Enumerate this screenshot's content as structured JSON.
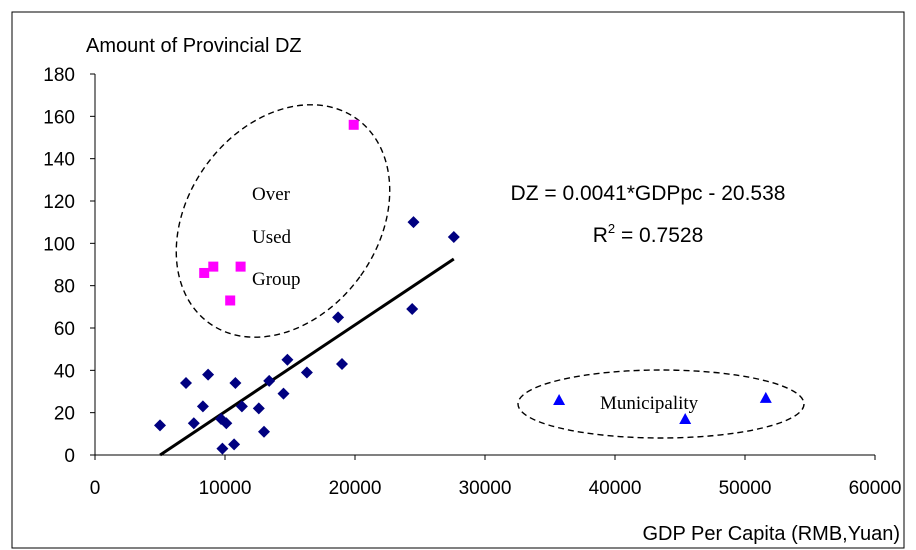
{
  "chart_data": {
    "type": "scatter",
    "title": "",
    "ylabel": "Amount of Provincial DZ",
    "xlabel": "GDP Per Capita (RMB,Yuan)",
    "xlim": [
      0,
      60000
    ],
    "ylim": [
      0,
      180
    ],
    "xticks": [
      0,
      10000,
      20000,
      30000,
      40000,
      50000,
      60000
    ],
    "yticks": [
      0,
      20,
      40,
      60,
      80,
      100,
      120,
      140,
      160,
      180
    ],
    "grid": false,
    "legend": "none",
    "series": [
      {
        "marker": "diamond",
        "color": "#000080",
        "points": [
          [
            5000,
            14
          ],
          [
            7000,
            34
          ],
          [
            7600,
            15
          ],
          [
            8300,
            23
          ],
          [
            8700,
            38
          ],
          [
            9700,
            17
          ],
          [
            9800,
            3
          ],
          [
            10100,
            15
          ],
          [
            10700,
            5
          ],
          [
            10800,
            34
          ],
          [
            11300,
            23
          ],
          [
            12600,
            22
          ],
          [
            13000,
            11
          ],
          [
            13400,
            35
          ],
          [
            14500,
            29
          ],
          [
            14800,
            45
          ],
          [
            16300,
            39
          ],
          [
            18700,
            65
          ],
          [
            19000,
            43
          ],
          [
            24400,
            69
          ],
          [
            24500,
            110
          ],
          [
            27600,
            103
          ]
        ]
      },
      {
        "marker": "square",
        "color": "#ff00ff",
        "points": [
          [
            8400,
            86
          ],
          [
            9100,
            89
          ],
          [
            10400,
            73
          ],
          [
            11200,
            89
          ],
          [
            19900,
            156
          ]
        ]
      },
      {
        "marker": "triangle",
        "color": "#0000ff",
        "points": [
          [
            35700,
            26
          ],
          [
            45400,
            17
          ],
          [
            51600,
            27
          ]
        ]
      }
    ],
    "trendline": {
      "slope": 0.0041,
      "intercept": -20.538,
      "x_range": [
        5009,
        27600
      ],
      "color": "#000000"
    },
    "annotations": {
      "equation": "DZ = 0.0041*GDPpc - 20.538",
      "r2_base": "R",
      "r2_exp": "2",
      "r2_value": " = 0.7528",
      "overused_line1": "Over",
      "overused_line2": "Used",
      "overused_line3": "Group",
      "municipality": "Municipality"
    }
  }
}
